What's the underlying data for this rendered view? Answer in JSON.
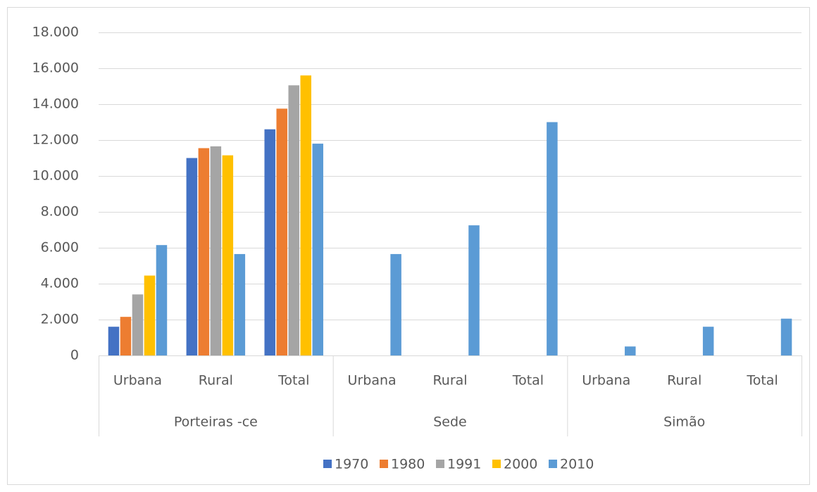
{
  "chart_data": {
    "type": "bar",
    "groups": [
      {
        "name": "Porteiras -ce",
        "categories": [
          "Urbana",
          "Rural",
          "Total"
        ]
      },
      {
        "name": "Sede",
        "categories": [
          "Urbana",
          "Rural",
          "Total"
        ]
      },
      {
        "name": "Simão",
        "categories": [
          "Urbana",
          "Rural",
          "Total"
        ]
      }
    ],
    "series": [
      {
        "name": "1970",
        "color": "#4472c4",
        "values": [
          1600,
          11000,
          12600,
          null,
          null,
          null,
          null,
          null,
          null
        ]
      },
      {
        "name": "1980",
        "color": "#ed7d31",
        "values": [
          2150,
          11550,
          13750,
          null,
          null,
          null,
          null,
          null,
          null
        ]
      },
      {
        "name": "1991",
        "color": "#a5a5a5",
        "values": [
          3400,
          11650,
          15050,
          null,
          null,
          null,
          null,
          null,
          null
        ]
      },
      {
        "name": "2000",
        "color": "#ffc000",
        "values": [
          4450,
          11150,
          15600,
          null,
          null,
          null,
          null,
          null,
          null
        ]
      },
      {
        "name": "2010",
        "color": "#5b9bd5",
        "values": [
          6150,
          5650,
          11800,
          5650,
          7250,
          13000,
          500,
          1600,
          2050
        ]
      }
    ],
    "ylim": [
      0,
      18000
    ],
    "yticks": [
      0,
      {
        "value": 2000,
        "label": "2.000"
      },
      {
        "value": 4000,
        "label": "4.000"
      },
      {
        "value": 6000,
        "label": "6.000"
      },
      {
        "value": 8000,
        "label": "8.000"
      },
      {
        "value": 10000,
        "label": "10.000"
      },
      {
        "value": 12000,
        "label": "12.000"
      },
      {
        "value": 14000,
        "label": "14.000"
      },
      {
        "value": 16000,
        "label": "16.000"
      },
      {
        "value": 18000,
        "label": "18.000"
      }
    ],
    "grid": true,
    "legend": "bottom"
  }
}
